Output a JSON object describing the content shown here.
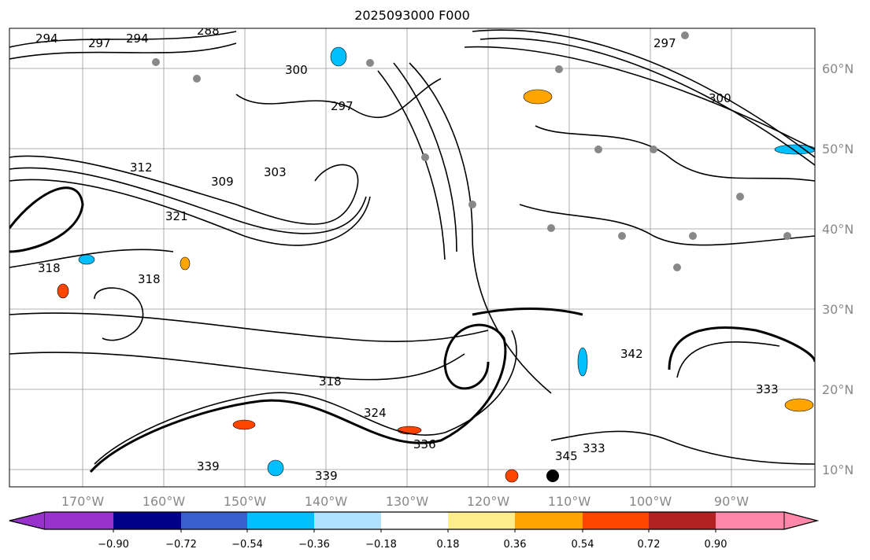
{
  "title": "2025093000 F000",
  "chart_data": {
    "type": "contour-map",
    "title": "2025093000 F000",
    "lon_ticks": [
      "170°W",
      "160°W",
      "150°W",
      "140°W",
      "130°W",
      "120°W",
      "110°W",
      "100°W",
      "90°W"
    ],
    "lat_ticks": [
      "60°N",
      "50°N",
      "40°N",
      "30°N",
      "20°N",
      "10°N"
    ],
    "lon_values": [
      -170,
      -160,
      -150,
      -140,
      -130,
      -120,
      -110,
      -100,
      -90
    ],
    "lat_values": [
      60,
      50,
      40,
      30,
      20,
      10
    ],
    "contour_labels": [
      "294",
      "297",
      "294",
      "288",
      "297",
      "300",
      "297",
      "300",
      "303",
      "312",
      "309",
      "321",
      "318",
      "318",
      "324",
      "318",
      "336",
      "339",
      "339",
      "333",
      "342",
      "333",
      "345"
    ],
    "colorbar": {
      "ticks": [
        "−0.90",
        "−0.72",
        "−0.54",
        "−0.36",
        "−0.18",
        "0.18",
        "0.36",
        "0.54",
        "0.72",
        "0.90"
      ],
      "levels": [
        -0.9,
        -0.72,
        -0.54,
        -0.36,
        -0.18,
        0.18,
        0.36,
        0.54,
        0.72,
        0.9
      ],
      "colors": [
        "#9932cc",
        "#00008b",
        "#3a5fcd",
        "#00bfff",
        "#b0e2ff",
        "#ffffff",
        "#ffec8b",
        "#ffa500",
        "#ff4500",
        "#b22222",
        "#ff88aa"
      ],
      "extend": "both"
    }
  }
}
